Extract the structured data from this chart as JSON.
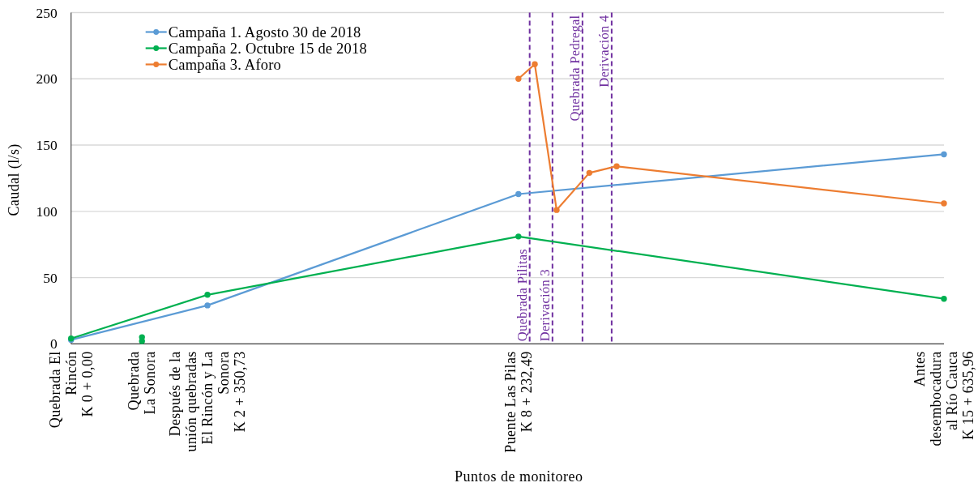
{
  "chart_data": {
    "type": "line",
    "xlabel": "Puntos de monitoreo",
    "ylabel": "Caudal (l/s)",
    "categories": [
      "Quebrada El\nRincón\nK 0 + 0,00",
      null,
      null,
      null,
      null,
      null,
      null,
      null,
      null,
      null,
      null,
      null,
      null,
      "Quebrada\nLa Sonora",
      null,
      null,
      null,
      null,
      null,
      null,
      null,
      null,
      null,
      null,
      null,
      "Después de la\nunión quebradas\nEl Rincón y La\nSonora\nK 2 + 350,73",
      null,
      null,
      null,
      null,
      null,
      null,
      null,
      null,
      null,
      null,
      null,
      null,
      null,
      null,
      null,
      null,
      null,
      null,
      null,
      null,
      null,
      null,
      null,
      null,
      null,
      null,
      null,
      null,
      null,
      null,
      null,
      null,
      null,
      null,
      null,
      null,
      null,
      null,
      null,
      null,
      null,
      null,
      null,
      null,
      null,
      null,
      null,
      null,
      null,
      null,
      null,
      null,
      null,
      null,
      null,
      null,
      "Puente Las Pilas\nK 8 + 232,49",
      null,
      null,
      null,
      null,
      null,
      null,
      null,
      null,
      null,
      null,
      null,
      null,
      null,
      null,
      null,
      null,
      null,
      null,
      null,
      null,
      null,
      null,
      null,
      null,
      null,
      null,
      null,
      null,
      null,
      null,
      null,
      null,
      null,
      null,
      null,
      null,
      null,
      null,
      null,
      null,
      null,
      null,
      null,
      null,
      null,
      null,
      null,
      null,
      null,
      null,
      null,
      null,
      null,
      null,
      null,
      null,
      null,
      null,
      null,
      null,
      null,
      null,
      null,
      null,
      null,
      null,
      null,
      null,
      null,
      null,
      null,
      null,
      null,
      null,
      null,
      null,
      null,
      "Antes\ndesembocadura\nal Río Cauca\nK 15 + 635,96"
    ],
    "ylim": [
      0,
      250
    ],
    "yticks": [
      0,
      50,
      100,
      150,
      200,
      250
    ],
    "grid": "y",
    "legend": "top left",
    "marker": "circle",
    "line_style": "solid",
    "annotations": [
      "Quebrada Pilitas",
      "Derivación 3",
      "Quebrada Pedregal",
      "Derivación 4"
    ],
    "series": [
      {
        "name": "Campaña 1. Agosto 30 de 2018",
        "color": "#5b9bd5",
        "values": [
          3,
          null,
          null,
          null,
          null,
          null,
          null,
          null,
          null,
          null,
          null,
          null,
          null,
          null,
          null,
          null,
          null,
          null,
          null,
          null,
          null,
          null,
          null,
          null,
          null,
          29,
          null,
          null,
          null,
          null,
          null,
          null,
          null,
          null,
          null,
          null,
          null,
          null,
          null,
          null,
          null,
          null,
          null,
          null,
          null,
          null,
          null,
          null,
          null,
          null,
          null,
          null,
          null,
          null,
          null,
          null,
          null,
          null,
          null,
          null,
          null,
          null,
          null,
          null,
          null,
          null,
          null,
          null,
          null,
          null,
          null,
          null,
          null,
          null,
          null,
          null,
          null,
          null,
          null,
          null,
          null,
          null,
          113,
          null,
          null,
          null,
          null,
          null,
          null,
          null,
          null,
          null,
          null,
          null,
          null,
          null,
          null,
          null,
          null,
          null,
          null,
          null,
          null,
          null,
          null,
          null,
          null,
          null,
          null,
          null,
          null,
          null,
          null,
          null,
          null,
          null,
          null,
          null,
          null,
          null,
          null,
          null,
          null,
          null,
          null,
          null,
          null,
          null,
          null,
          null,
          null,
          null,
          null,
          null,
          null,
          null,
          null,
          null,
          null,
          null,
          null,
          null,
          null,
          null,
          null,
          null,
          null,
          null,
          null,
          null,
          null,
          null,
          null,
          null,
          null,
          null,
          null,
          null,
          null,
          null,
          143
        ]
      },
      {
        "name": "Campaña 2. Octubre 15 de 2018",
        "color": "#00b050",
        "values": [
          4,
          null,
          null,
          null,
          null,
          null,
          null,
          null,
          null,
          null,
          null,
          null,
          null,
          null,
          null,
          null,
          null,
          null,
          null,
          null,
          null,
          null,
          null,
          null,
          null,
          37,
          null,
          null,
          null,
          null,
          null,
          null,
          null,
          null,
          null,
          null,
          null,
          null,
          null,
          null,
          null,
          null,
          null,
          null,
          null,
          null,
          null,
          null,
          null,
          null,
          null,
          null,
          null,
          null,
          null,
          null,
          null,
          null,
          null,
          null,
          null,
          null,
          null,
          null,
          null,
          null,
          null,
          null,
          null,
          null,
          null,
          null,
          null,
          null,
          null,
          null,
          null,
          null,
          null,
          null,
          null,
          null,
          81,
          null,
          null,
          null,
          null,
          null,
          null,
          null,
          null,
          null,
          null,
          null,
          null,
          null,
          null,
          null,
          null,
          null,
          null,
          null,
          null,
          null,
          null,
          null,
          null,
          null,
          null,
          null,
          null,
          null,
          null,
          null,
          null,
          null,
          null,
          null,
          null,
          null,
          null,
          null,
          null,
          null,
          null,
          null,
          null,
          null,
          null,
          null,
          null,
          null,
          null,
          null,
          null,
          null,
          null,
          null,
          null,
          null,
          null,
          null,
          null,
          null,
          null,
          null,
          null,
          null,
          null,
          null,
          null,
          null,
          null,
          null,
          null,
          null,
          null,
          null,
          null,
          null,
          34
        ]
      },
      {
        "name": "Campaña 3. Aforo",
        "color": "#ed7d31",
        "values": [
          null,
          null,
          null,
          null,
          null,
          null,
          null,
          null,
          null,
          null,
          null,
          null,
          null,
          null,
          null,
          null,
          null,
          null,
          null,
          null,
          null,
          null,
          null,
          null,
          null,
          null,
          null,
          null,
          null,
          null,
          null,
          null,
          null,
          null,
          null,
          null,
          null,
          null,
          null,
          null,
          null,
          null,
          null,
          null,
          null,
          null,
          null,
          null,
          null,
          null,
          null,
          null,
          null,
          null,
          null,
          null,
          null,
          null,
          null,
          null,
          null,
          null,
          null,
          null,
          null,
          null,
          null,
          null,
          null,
          null,
          null,
          null,
          null,
          null,
          null,
          null,
          null,
          null,
          null,
          null,
          null,
          null,
          200,
          null,
          null,
          211,
          null,
          null,
          null,
          101,
          null,
          null,
          null,
          null,
          null,
          129,
          null,
          null,
          null,
          null,
          134,
          null,
          null,
          null,
          null,
          null,
          null,
          null,
          null,
          null,
          null,
          null,
          null,
          null,
          null,
          null,
          null,
          null,
          null,
          null,
          null,
          null,
          null,
          null,
          null,
          null,
          null,
          null,
          null,
          null,
          null,
          null,
          null,
          null,
          null,
          null,
          null,
          null,
          null,
          null,
          null,
          null,
          null,
          null,
          null,
          null,
          null,
          null,
          null,
          null,
          null,
          null,
          null,
          null,
          null,
          null,
          null,
          null,
          null,
          null,
          106
        ]
      },
      {
        "type": "scatter",
        "color": "#00b050",
        "x": [
          "Quebrada\nLa Sonora",
          "Quebrada\nLa Sonora"
        ],
        "values": [
          2,
          5
        ]
      }
    ]
  }
}
